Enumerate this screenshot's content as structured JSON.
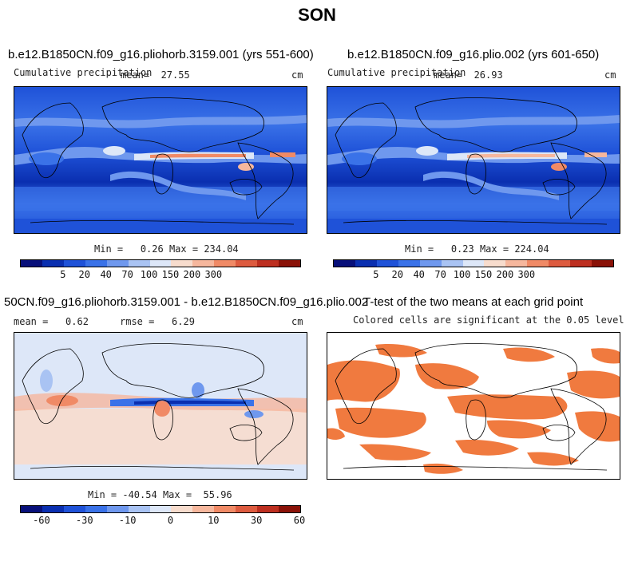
{
  "figure": {
    "title": "SON"
  },
  "panels": [
    {
      "title": "b.e12.B1850CN.f09_g16.pliohorb.3159.001 (yrs 551-600)",
      "variable": "Cumulative precipitation",
      "mean_label": "mean=",
      "mean_value": "27.55",
      "units": "cm",
      "min_label": "Min =",
      "min_value": "0.26",
      "max_label": "Max =",
      "max_value": "234.04"
    },
    {
      "title": "b.e12.B1850CN.f09_g16.plio.002 (yrs 601-650)",
      "variable": "Cumulative precipitation",
      "mean_label": "mean=",
      "mean_value": "26.93",
      "units": "cm",
      "min_label": "Min =",
      "min_value": "0.23",
      "max_label": "Max =",
      "max_value": "224.04"
    },
    {
      "title": "50CN.f09_g16.pliohorb.3159.001 - b.e12.B1850CN.f09_g16.plio.002",
      "mean_label": "mean =",
      "mean_value": "0.62",
      "rmse_label": "rmse =",
      "rmse_value": "6.29",
      "units": "cm",
      "min_label": "Min =",
      "min_value": "-40.54",
      "max_label": "Max =",
      "max_value": "55.96"
    },
    {
      "title": "T-test of the two means at each grid point",
      "subtitle": "Colored cells are significant at the 0.05 level"
    }
  ],
  "colorbars": {
    "precip": {
      "colors": [
        "#08107a",
        "#0a2fb0",
        "#1f52d8",
        "#3a72e8",
        "#6f98ee",
        "#a9c3f3",
        "#dde7f8",
        "#f7dccd",
        "#f6b79d",
        "#f08a66",
        "#dd5b3f",
        "#bd2f20",
        "#8a1208"
      ],
      "ticks": [
        "5",
        "20",
        "40",
        "70",
        "100",
        "150",
        "200",
        "300"
      ]
    },
    "diff": {
      "colors": [
        "#08107a",
        "#0a2fb0",
        "#1f52d8",
        "#3a72e8",
        "#6f98ee",
        "#a9c3f3",
        "#dde7f8",
        "#f7dccd",
        "#f6b79d",
        "#f08a66",
        "#dd5b3f",
        "#bd2f20",
        "#8a1208"
      ],
      "ticks": [
        "-60",
        "-30",
        "-10",
        "0",
        "10",
        "30",
        "60"
      ]
    }
  },
  "chart_data": [
    {
      "type": "heatmap",
      "title": "b.e12.B1850CN.f09_g16.pliohorb.3159.001 (yrs 551-600)",
      "variable": "Cumulative precipitation",
      "season": "SON",
      "units": "cm",
      "mean": 27.55,
      "min": 0.26,
      "max": 234.04,
      "colorbar_ticks": [
        5,
        20,
        40,
        70,
        100,
        150,
        200,
        300
      ]
    },
    {
      "type": "heatmap",
      "title": "b.e12.B1850CN.f09_g16.plio.002 (yrs 601-650)",
      "variable": "Cumulative precipitation",
      "season": "SON",
      "units": "cm",
      "mean": 26.93,
      "min": 0.23,
      "max": 224.04,
      "colorbar_ticks": [
        5,
        20,
        40,
        70,
        100,
        150,
        200,
        300
      ]
    },
    {
      "type": "heatmap",
      "title": "50CN.f09_g16.pliohorb.3159.001 - b.e12.B1850CN.f09_g16.plio.002",
      "season": "SON",
      "units": "cm",
      "mean": 0.62,
      "rmse": 6.29,
      "min": -40.54,
      "max": 55.96,
      "colorbar_ticks": [
        -60,
        -30,
        -10,
        0,
        10,
        30,
        60
      ]
    },
    {
      "type": "heatmap",
      "title": "T-test of the two means at each grid point",
      "subtitle": "Colored cells are significant at the 0.05 level",
      "significance_level": 0.05,
      "significant_color": "#f07a3f"
    }
  ]
}
